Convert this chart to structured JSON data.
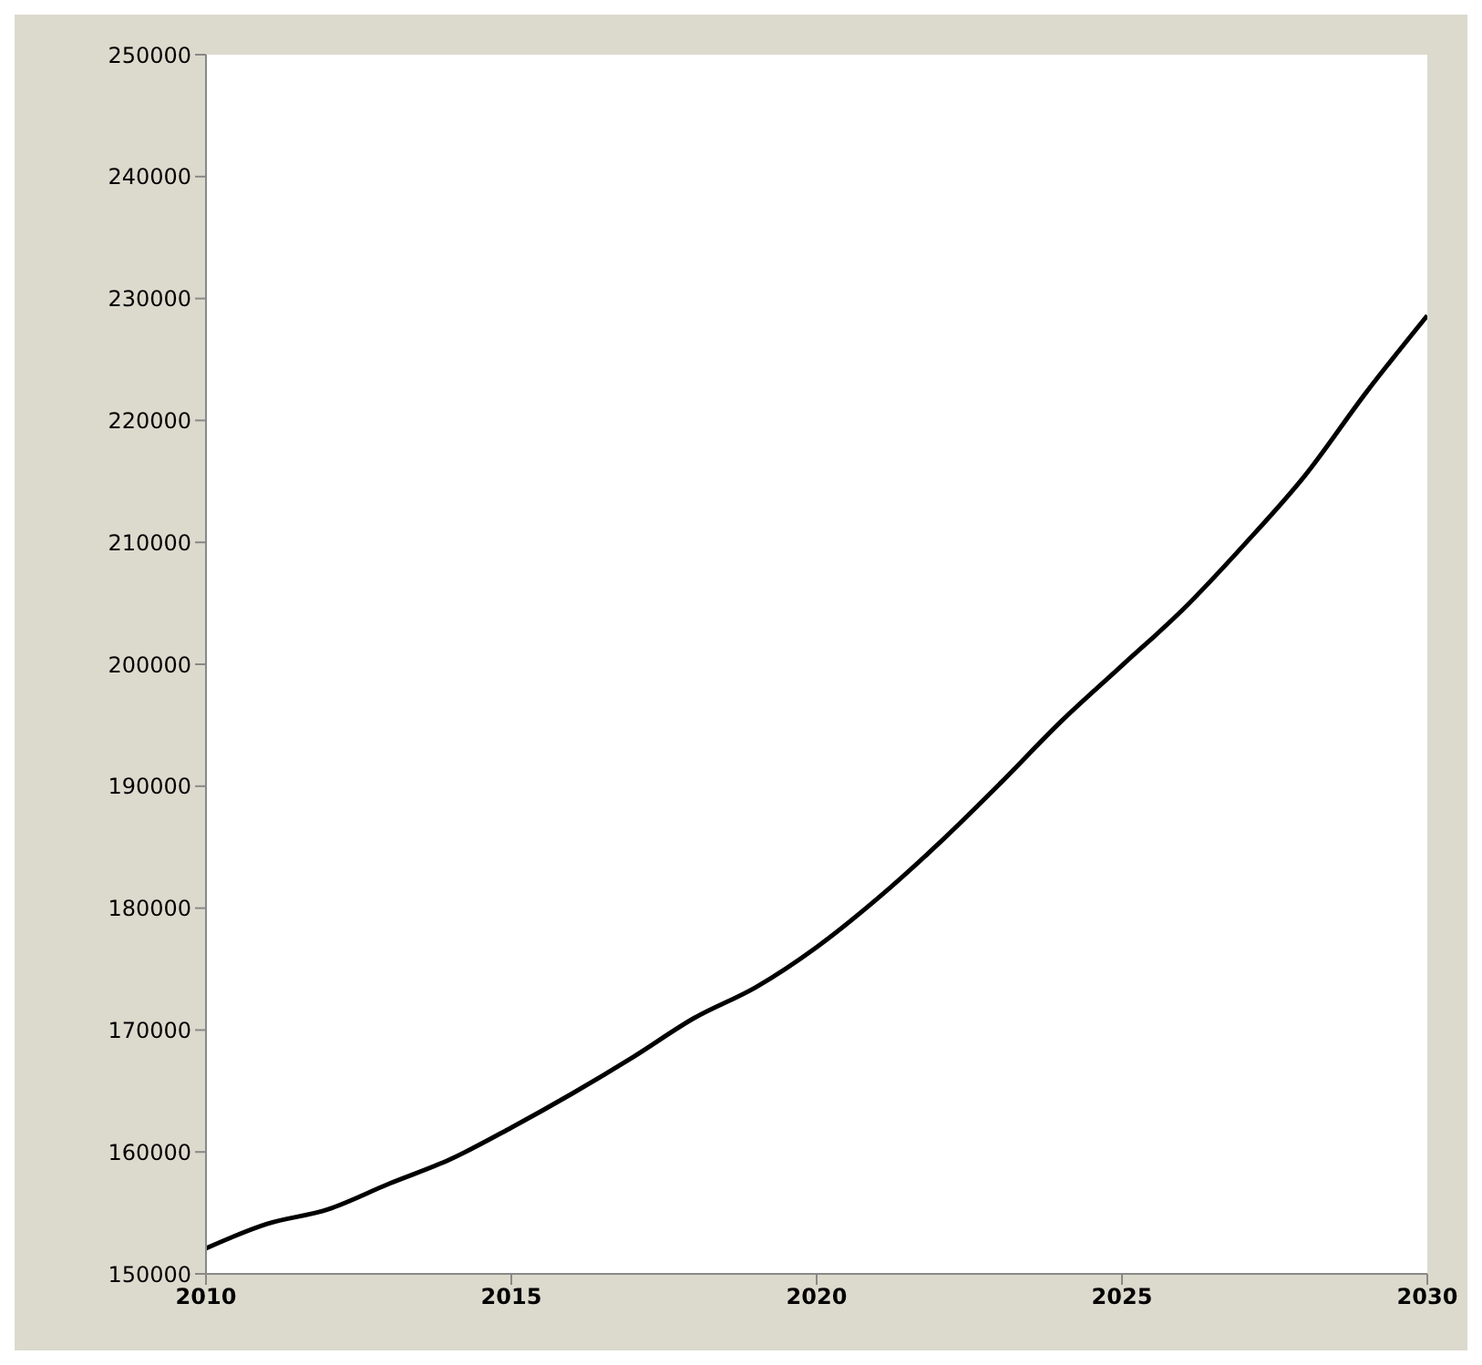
{
  "chart_data": {
    "type": "line",
    "x": [
      2010,
      2011,
      2012,
      2013,
      2014,
      2015,
      2016,
      2017,
      2018,
      2019,
      2020,
      2021,
      2022,
      2023,
      2024,
      2025,
      2026,
      2027,
      2028,
      2029,
      2030
    ],
    "series": [
      {
        "color": "#000000",
        "values": [
          152100,
          154100,
          155300,
          157400,
          159400,
          162000,
          164800,
          167800,
          171000,
          173500,
          176800,
          180800,
          185300,
          190200,
          195300,
          199900,
          204500,
          209800,
          215500,
          222300,
          228600
        ]
      }
    ],
    "xlim": [
      2010,
      2030
    ],
    "xticks": [
      2010,
      2015,
      2020,
      2025,
      2030
    ],
    "ylim": [
      150000,
      250000
    ],
    "yticks": [
      150000,
      160000,
      170000,
      180000,
      190000,
      200000,
      210000,
      220000,
      230000,
      240000,
      250000
    ],
    "grid": false,
    "legend": false,
    "marker": "none",
    "line_style": "solid"
  }
}
